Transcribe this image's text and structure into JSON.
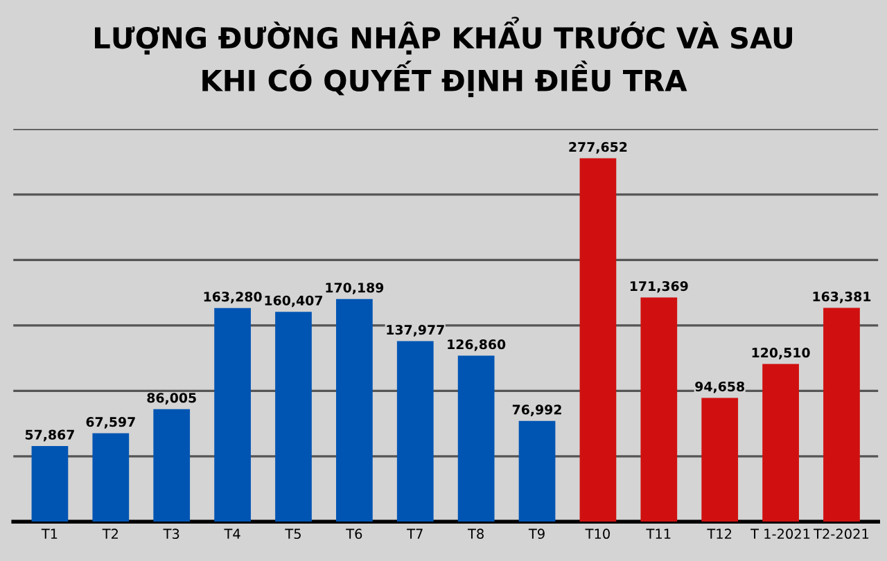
{
  "chart_data": {
    "type": "bar",
    "title": "LƯỢNG ĐƯỜNG NHẬP KHẨU TRƯỚC VÀ SAU\nKHI CÓ QUYẾT ĐỊNH ĐIỀU TRA",
    "categories": [
      "T1",
      "T2",
      "T3",
      "T4",
      "T5",
      "T6",
      "T7",
      "T8",
      "T9",
      "T10",
      "T11",
      "T12",
      "T 1-2021",
      "T2-2021"
    ],
    "values": [
      57867,
      67597,
      86005,
      163280,
      160407,
      170189,
      137977,
      126860,
      76992,
      277652,
      171369,
      94658,
      120510,
      163381
    ],
    "colors": [
      "#0055b3",
      "#0055b3",
      "#0055b3",
      "#0055b3",
      "#0055b3",
      "#0055b3",
      "#0055b3",
      "#0055b3",
      "#0055b3",
      "#d01010",
      "#d01010",
      "#d01010",
      "#d01010",
      "#d01010"
    ],
    "value_labels": [
      "57,867",
      "67,597",
      "86,005",
      "163,280",
      "160,407",
      "170,189",
      "137,977",
      "126,860",
      "76,992",
      "277,652",
      "171,369",
      "94,658",
      "120,510",
      "163,381"
    ],
    "ylim": [
      0,
      300000
    ],
    "yticks": [
      {
        "value": 0,
        "label": null
      },
      {
        "value": 50000,
        "label": null
      },
      {
        "value": 100000,
        "label": null
      },
      {
        "value": 150000,
        "label": null
      },
      {
        "value": 200000,
        "label": null
      },
      {
        "value": 250000,
        "label": null
      },
      {
        "value": 300000,
        "label": null
      }
    ],
    "grid": "y",
    "tick_labels": "x"
  }
}
